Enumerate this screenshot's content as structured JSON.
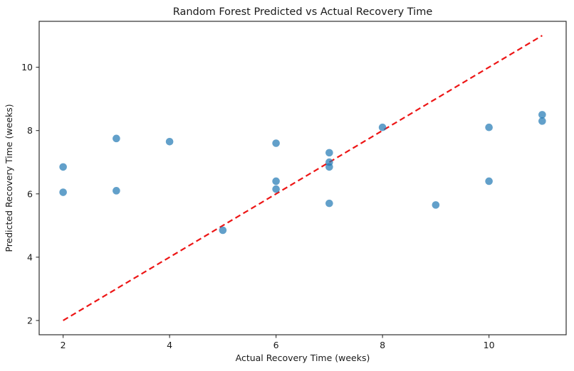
{
  "chart_data": {
    "type": "scatter",
    "title": "Random Forest Predicted vs Actual Recovery Time",
    "xlabel": "Actual Recovery Time (weeks)",
    "ylabel": "Predicted Recovery Time (weeks)",
    "xlim": [
      1.55,
      11.45
    ],
    "ylim": [
      1.55,
      11.45
    ],
    "xticks": [
      2,
      4,
      6,
      8,
      10
    ],
    "yticks": [
      2,
      4,
      6,
      8,
      10
    ],
    "grid": false,
    "legend": false,
    "points": [
      [
        2,
        6.85
      ],
      [
        2,
        6.05
      ],
      [
        3,
        7.75
      ],
      [
        3,
        6.1
      ],
      [
        4,
        7.65
      ],
      [
        5,
        4.85
      ],
      [
        6,
        7.6
      ],
      [
        6,
        6.4
      ],
      [
        6,
        6.15
      ],
      [
        7,
        7.3
      ],
      [
        7,
        7.0
      ],
      [
        7,
        6.85
      ],
      [
        7,
        5.7
      ],
      [
        8,
        8.1
      ],
      [
        9,
        5.65
      ],
      [
        10,
        8.1
      ],
      [
        10,
        6.4
      ],
      [
        11,
        8.5
      ],
      [
        11,
        8.3
      ]
    ],
    "point_color": "#1f77b4",
    "point_alpha": 0.7,
    "identity_line": {
      "x": [
        2,
        11
      ],
      "y": [
        2,
        11
      ],
      "color": "#ed1515",
      "style": "dashed"
    },
    "spine_color": "#2e2e2e"
  }
}
